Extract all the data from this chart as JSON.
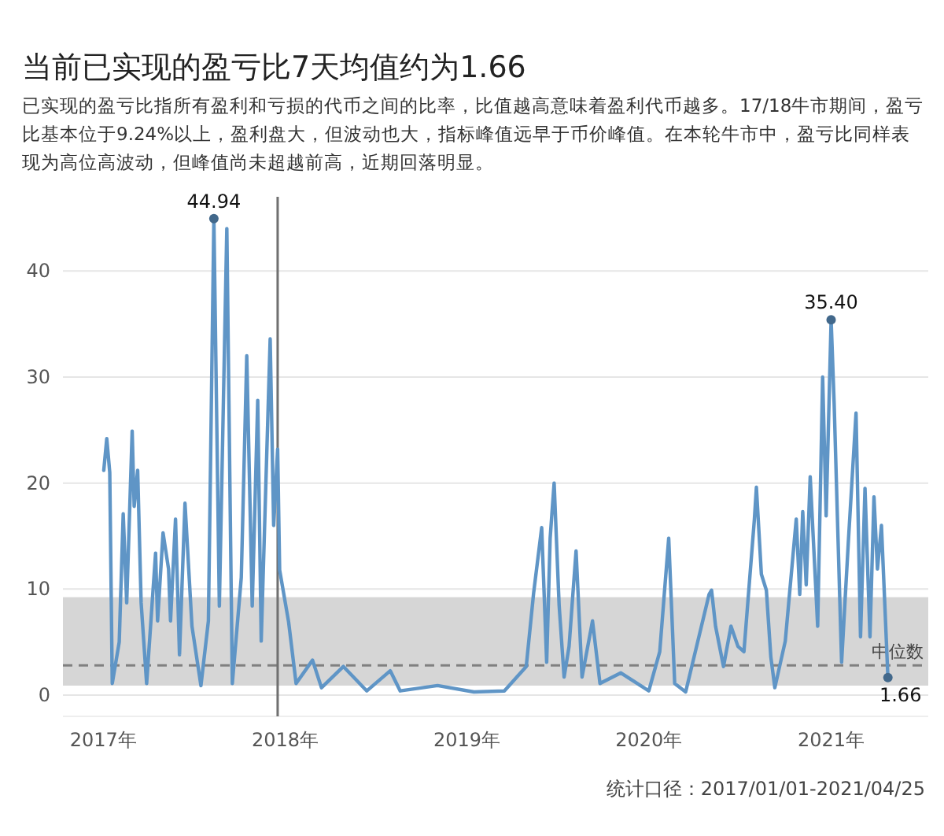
{
  "chart_data": {
    "type": "line",
    "title": "当前已实现的盈亏比7天均值约为1.66",
    "subtitle": "已实现的盈亏比指所有盈利和亏损的代币之间的比率，比值越高意味着盈利代币越多。17/18牛市期间，盈亏比基本位于9.24%以上，盈利盘大，但波动也大，指标峰值远早于币价峰值。在本轮牛市中，盈亏比同样表现为高位高波动，但峰值尚未超越前高，近期回落明显。",
    "annotations": [
      "统计口径：2017/01/01-2021/04/25"
    ],
    "x": [
      "2017-01-02",
      "2017-01-08",
      "2017-01-14",
      "2017-01-19",
      "2017-02-02",
      "2017-02-10",
      "2017-02-17",
      "2017-02-28",
      "2017-03-04",
      "2017-03-11",
      "2017-03-18",
      "2017-03-29",
      "2017-04-16",
      "2017-04-20",
      "2017-05-01",
      "2017-05-12",
      "2017-05-16",
      "2017-05-26",
      "2017-06-03",
      "2017-06-14",
      "2017-06-28",
      "2017-07-16",
      "2017-07-31",
      "2017-08-11",
      "2017-08-22",
      "2017-09-06",
      "2017-09-17",
      "2017-10-05",
      "2017-10-16",
      "2017-10-27",
      "2017-11-07",
      "2017-11-14",
      "2017-12-02",
      "2017-12-09",
      "2017-12-17",
      "2017-12-21",
      "2018-01-08",
      "2018-01-23",
      "2018-02-25",
      "2018-03-15",
      "2018-04-28",
      "2018-06-14",
      "2018-07-31",
      "2018-08-20",
      "2018-11-03",
      "2019-01-15",
      "2019-03-17",
      "2019-04-30",
      "2019-05-15",
      "2019-05-31",
      "2019-06-10",
      "2019-06-17",
      "2019-06-25",
      "2019-07-05",
      "2019-07-15",
      "2019-07-25",
      "2019-08-08",
      "2019-08-20",
      "2019-09-10",
      "2019-09-25",
      "2019-11-06",
      "2020-01-01",
      "2020-01-23",
      "2020-02-10",
      "2020-02-22",
      "2020-03-15",
      "2020-05-01",
      "2020-05-06",
      "2020-05-14",
      "2020-05-30",
      "2020-06-14",
      "2020-06-28",
      "2020-07-10",
      "2020-07-31",
      "2020-08-04",
      "2020-08-14",
      "2020-08-24",
      "2020-09-02",
      "2020-09-10",
      "2020-10-01",
      "2020-10-23",
      "2020-10-30",
      "2020-11-05",
      "2020-11-12",
      "2020-11-20",
      "2020-12-05",
      "2020-12-15",
      "2020-12-22",
      "2021-01-01",
      "2021-01-07",
      "2021-01-22",
      "2021-02-05",
      "2021-02-20",
      "2021-03-01",
      "2021-03-10",
      "2021-03-20",
      "2021-03-28",
      "2021-04-04",
      "2021-04-12",
      "2021-04-25"
    ],
    "series": [
      {
        "color": "#5f95c6",
        "values": [
          21.2,
          24.2,
          21.0,
          1.1,
          5.0,
          17.1,
          8.7,
          24.9,
          17.8,
          21.2,
          8.7,
          1.1,
          13.4,
          7.0,
          15.3,
          11.9,
          7.0,
          16.6,
          3.8,
          18.1,
          6.5,
          0.9,
          7.0,
          44.94,
          8.4,
          44.0,
          1.1,
          11.1,
          32.0,
          8.4,
          27.8,
          5.1,
          33.6,
          16.0,
          23.2,
          11.8,
          6.9,
          1.1,
          3.3,
          0.7,
          2.7,
          0.4,
          2.3,
          0.4,
          0.9,
          0.3,
          0.4,
          2.7,
          9.7,
          15.8,
          3.1,
          14.8,
          20.0,
          8.5,
          1.7,
          4.6,
          13.6,
          1.7,
          7.0,
          1.1,
          2.1,
          0.4,
          4.1,
          14.8,
          1.1,
          0.3,
          9.5,
          9.9,
          6.5,
          2.7,
          6.5,
          4.6,
          4.1,
          16.6,
          19.6,
          11.4,
          9.9,
          3.6,
          0.7,
          5.1,
          16.6,
          9.5,
          17.3,
          10.4,
          20.6,
          6.5,
          30.0,
          16.9,
          35.4,
          27.6,
          3.1,
          14.8,
          26.6,
          5.5,
          19.5,
          5.5,
          18.7,
          11.9,
          16.0,
          1.66
        ],
        "value_labels": [
          null,
          null,
          null,
          null,
          null,
          null,
          null,
          null,
          null,
          null,
          null,
          null,
          null,
          null,
          null,
          null,
          null,
          null,
          null,
          null,
          null,
          null,
          null,
          "44.94",
          null,
          null,
          null,
          null,
          null,
          null,
          null,
          null,
          null,
          null,
          null,
          null,
          null,
          null,
          null,
          null,
          null,
          null,
          null,
          null,
          null,
          null,
          null,
          null,
          null,
          null,
          null,
          null,
          null,
          null,
          null,
          null,
          null,
          null,
          null,
          null,
          null,
          null,
          null,
          null,
          null,
          null,
          null,
          null,
          null,
          null,
          null,
          null,
          null,
          null,
          null,
          null,
          null,
          null,
          null,
          null,
          null,
          null,
          null,
          null,
          null,
          null,
          null,
          null,
          "35.40",
          null,
          null,
          null,
          null,
          null,
          null,
          null,
          null,
          null,
          null,
          "1.66"
        ]
      }
    ],
    "xlim": [
      "2016-10-12",
      "2021-07-15"
    ],
    "xticks": [
      {
        "value": "2017-01-01",
        "label": "2017年"
      },
      {
        "value": "2018-01-01",
        "label": "2018年"
      },
      {
        "value": "2019-01-01",
        "label": "2019年"
      },
      {
        "value": "2020-01-01",
        "label": "2020年"
      },
      {
        "value": "2021-01-01",
        "label": "2021年"
      }
    ],
    "ylim": [
      -2,
      47
    ],
    "yticks": [
      0,
      10,
      20,
      30,
      40
    ],
    "grid": "y",
    "ref_lines": [
      {
        "axis": "y",
        "value": 2.8,
        "label": "中位数",
        "color": "#808080",
        "line_style": "dashed"
      },
      {
        "axis": "x",
        "value": "2017-12-17",
        "color": "#707070",
        "line_style": "solid"
      }
    ],
    "bands": [
      {
        "axis": "y",
        "from": 0.9,
        "to": 9.24,
        "color": "#d6d6d6"
      }
    ]
  }
}
